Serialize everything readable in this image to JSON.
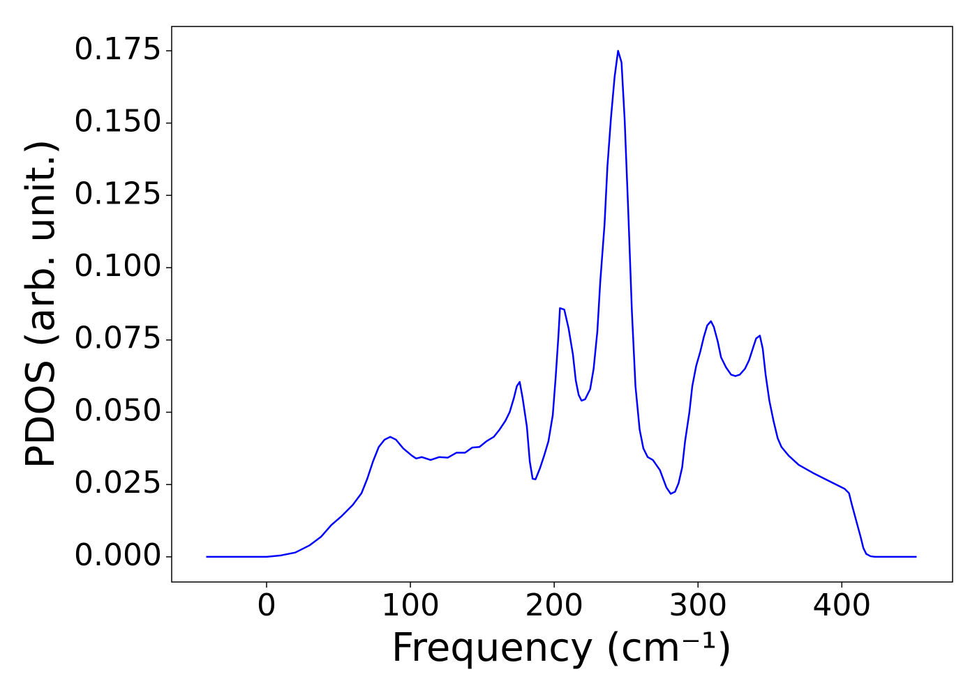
{
  "chart_data": {
    "type": "line",
    "xlabel": "Frequency (cm⁻¹)",
    "ylabel": "PDOS (arb. unit.)",
    "xlim": [
      -66,
      477
    ],
    "ylim": [
      -0.0087,
      0.1834
    ],
    "xticks": [
      0,
      100,
      200,
      300,
      400
    ],
    "yticks": [
      {
        "value": 0,
        "label": "0.000"
      },
      {
        "value": 0.025,
        "label": "0.025"
      },
      {
        "value": 0.05,
        "label": "0.050"
      },
      {
        "value": 0.075,
        "label": "0.075"
      },
      {
        "value": 0.1,
        "label": "0.100"
      },
      {
        "value": 0.125,
        "label": "0.125"
      },
      {
        "value": 0.15,
        "label": "0.150"
      },
      {
        "value": 0.175,
        "label": "0.175"
      }
    ],
    "grid": false,
    "series": [
      {
        "color": "#0000ff",
        "x": [
          -42,
          0,
          10,
          20,
          30,
          38,
          45,
          52,
          60,
          66,
          70,
          74,
          78,
          82,
          86,
          90,
          95,
          101,
          104,
          108,
          114,
          120,
          126,
          132,
          138,
          143,
          148,
          153,
          158,
          162,
          166,
          169,
          172,
          174,
          176,
          178,
          181,
          183,
          185,
          187,
          190,
          193,
          196,
          199,
          201,
          203,
          204,
          207,
          210,
          213,
          215,
          217,
          219,
          221.5,
          225,
          227.4,
          230,
          232,
          235,
          237,
          239.5,
          242,
          244.4,
          246.8,
          249,
          251.6,
          254,
          256.5,
          259.4,
          262,
          265,
          268.6,
          273.5,
          278,
          281,
          284,
          286.5,
          289,
          291,
          294,
          296,
          298.7,
          301.6,
          304,
          306.4,
          309,
          311,
          313.7,
          316,
          319.5,
          323,
          326,
          329,
          332.6,
          335.5,
          338.4,
          340.4,
          343,
          345,
          347,
          349.6,
          352.5,
          355.4,
          358,
          363,
          370,
          380,
          390,
          398,
          402,
          405,
          407,
          410,
          413,
          415,
          417,
          420,
          423,
          452
        ],
        "values": [
          0,
          0,
          0.0005,
          0.0015,
          0.004,
          0.007,
          0.011,
          0.014,
          0.018,
          0.022,
          0.027,
          0.033,
          0.038,
          0.0405,
          0.0415,
          0.0405,
          0.0375,
          0.035,
          0.034,
          0.0345,
          0.0335,
          0.0345,
          0.0343,
          0.036,
          0.036,
          0.0378,
          0.038,
          0.04,
          0.0415,
          0.044,
          0.047,
          0.05,
          0.055,
          0.059,
          0.0605,
          0.055,
          0.045,
          0.033,
          0.027,
          0.0268,
          0.0305,
          0.035,
          0.04,
          0.049,
          0.062,
          0.077,
          0.086,
          0.0855,
          0.079,
          0.07,
          0.061,
          0.056,
          0.054,
          0.0545,
          0.058,
          0.065,
          0.078,
          0.095,
          0.115,
          0.135,
          0.152,
          0.166,
          0.175,
          0.171,
          0.151,
          0.118,
          0.085,
          0.059,
          0.044,
          0.0375,
          0.0345,
          0.0335,
          0.03,
          0.024,
          0.0218,
          0.0225,
          0.0255,
          0.031,
          0.04,
          0.05,
          0.059,
          0.066,
          0.071,
          0.076,
          0.08,
          0.0815,
          0.0795,
          0.0745,
          0.069,
          0.0655,
          0.063,
          0.0625,
          0.063,
          0.065,
          0.068,
          0.0725,
          0.0755,
          0.0765,
          0.072,
          0.063,
          0.054,
          0.047,
          0.041,
          0.038,
          0.035,
          0.0318,
          0.029,
          0.0265,
          0.0245,
          0.0235,
          0.022,
          0.018,
          0.0125,
          0.007,
          0.003,
          0.001,
          0.0002,
          0,
          0
        ]
      }
    ]
  }
}
